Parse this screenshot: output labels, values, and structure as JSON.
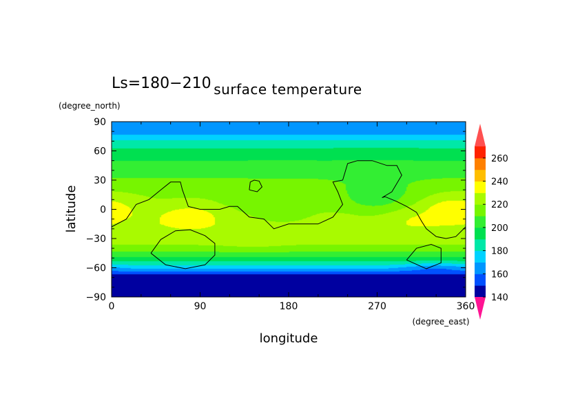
{
  "chart_data": {
    "type": "heatmap",
    "subtitle": "Ls=180−210",
    "title": "surface temperature",
    "xlabel": "longitude",
    "ylabel": "latitude",
    "xunit": "(degree_east)",
    "yunit": "(degree_north)",
    "xlim": [
      0,
      360
    ],
    "ylim": [
      -90,
      90
    ],
    "xticks": [
      0,
      90,
      180,
      270,
      360
    ],
    "yticks": [
      -90,
      -60,
      -30,
      0,
      30,
      60,
      90
    ],
    "colorbar": {
      "levels": [
        140,
        150,
        160,
        170,
        180,
        190,
        200,
        210,
        220,
        230,
        240,
        250,
        260,
        270
      ],
      "tick_labels": [
        140,
        160,
        180,
        200,
        220,
        240,
        260
      ],
      "colors": [
        "#0000a0",
        "#0050ff",
        "#0096ff",
        "#00d2ff",
        "#00e8a8",
        "#00e050",
        "#33ee33",
        "#77f500",
        "#a9fa00",
        "#ffff00",
        "#ffbe00",
        "#ff8000",
        "#ff2200"
      ],
      "over_color": "#ff5050",
      "under_color": "#ff1493"
    },
    "temperature_by_latitude": {
      "lat": [
        -90,
        -75,
        -67,
        -62,
        -57,
        -50,
        -42,
        -35,
        -25,
        -15,
        -5,
        5,
        15,
        25,
        35,
        45,
        55,
        65,
        72,
        78,
        85,
        90
      ],
      "temp": [
        145,
        145,
        148,
        168,
        182,
        198,
        213,
        222,
        226,
        228,
        226,
        220,
        218,
        215,
        208,
        203,
        197,
        188,
        178,
        168,
        160,
        160
      ]
    },
    "warm_regions": [
      {
        "lon": 80,
        "lat": -8,
        "temp": 235
      },
      {
        "lon": 145,
        "lat": -22,
        "temp": 232
      },
      {
        "lon": 300,
        "lat": -8,
        "temp": 234
      },
      {
        "lon": 340,
        "lat": 0,
        "temp": 237
      },
      {
        "lon": 0,
        "lat": 0,
        "temp": 232
      }
    ],
    "cool_regions": [
      {
        "lon": 270,
        "lat": 15,
        "temp": 202
      },
      {
        "lon": 170,
        "lat": 5,
        "temp": 208
      }
    ],
    "polar_anomalies": [
      {
        "lon": 330,
        "lat": -62,
        "temp": 152
      }
    ],
    "contours": [
      {
        "name": "continent-outline",
        "lon": [
          0,
          15,
          25,
          38,
          50,
          60,
          70,
          72,
          78,
          90,
          100,
          110,
          120,
          128,
          140,
          155,
          165,
          180,
          195,
          210,
          225,
          235,
          230,
          225,
          235,
          240,
          250,
          265,
          280,
          290,
          295,
          285,
          275,
          278,
          290,
          300,
          310,
          315,
          320,
          330,
          340,
          350,
          360
        ],
        "lat": [
          -18,
          -10,
          5,
          10,
          20,
          28,
          28,
          20,
          3,
          0,
          0,
          0,
          3,
          3,
          -8,
          -10,
          -20,
          -15,
          -15,
          -15,
          -8,
          5,
          18,
          28,
          30,
          47,
          50,
          50,
          45,
          45,
          35,
          18,
          12,
          13,
          8,
          3,
          -3,
          -12,
          -20,
          -28,
          -30,
          -28,
          -18
        ]
      },
      {
        "name": "small-ring",
        "lon": [
          140,
          148,
          153,
          150,
          145,
          141,
          140
        ],
        "lat": [
          20,
          18,
          23,
          29,
          30,
          28,
          20
        ]
      },
      {
        "name": "southern-basin",
        "lon": [
          40,
          55,
          75,
          95,
          105,
          105,
          95,
          80,
          65,
          50,
          40
        ],
        "lat": [
          -45,
          -57,
          -61,
          -57,
          -47,
          -35,
          -27,
          -21,
          -22,
          -31,
          -45
        ]
      },
      {
        "name": "southeast-basin",
        "lon": [
          300,
          320,
          335,
          335,
          325,
          310,
          300
        ],
        "lat": [
          -52,
          -61,
          -55,
          -40,
          -36,
          -40,
          -52
        ]
      }
    ]
  }
}
